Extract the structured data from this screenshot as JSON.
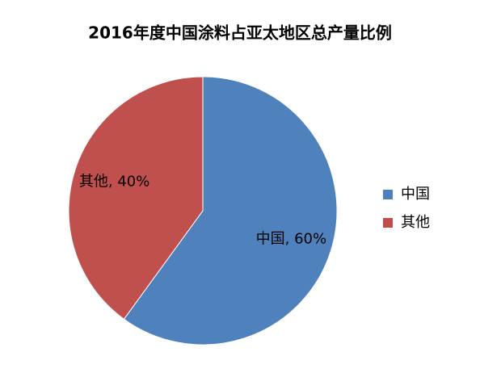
{
  "chart_data": {
    "type": "pie",
    "title": "2016年度中国涂料占亚太地区总产量比例",
    "categories": [
      "中国",
      "其他"
    ],
    "values": [
      60,
      40
    ],
    "value_labels": [
      "中国, 60%",
      "其他, 40%"
    ],
    "colors": [
      "#4f81bd",
      "#c0504d"
    ],
    "legend": "right"
  }
}
